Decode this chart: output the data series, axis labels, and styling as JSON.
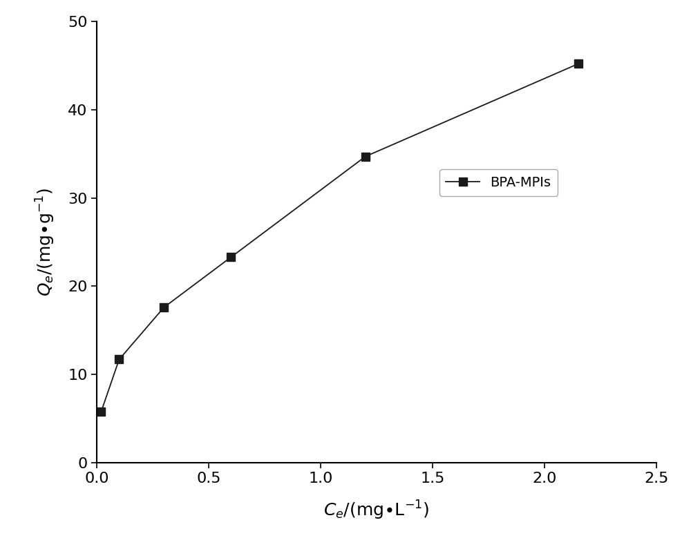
{
  "x": [
    0.02,
    0.1,
    0.3,
    0.6,
    1.2,
    2.15
  ],
  "y": [
    5.8,
    11.7,
    17.6,
    23.3,
    34.7,
    45.2
  ],
  "xlabel": "$C_e$/(mg$\\bullet$L$^{-1}$)",
  "ylabel": "$Q_e$/(mg$\\bullet$g$^{-1}$)",
  "xlim": [
    0,
    2.5
  ],
  "ylim": [
    0,
    50
  ],
  "xticks": [
    0.0,
    0.5,
    1.0,
    1.5,
    2.0,
    2.5
  ],
  "yticks": [
    0,
    10,
    20,
    30,
    40,
    50
  ],
  "legend_label": "BPA-MPIs",
  "line_color": "#1a1a1a",
  "marker": "s",
  "marker_size": 8,
  "marker_color": "#1a1a1a",
  "line_style": "-",
  "line_width": 1.3,
  "background_color": "#ffffff",
  "xlabel_fontsize": 18,
  "ylabel_fontsize": 18,
  "tick_fontsize": 16,
  "legend_fontsize": 14,
  "spine_linewidth": 1.5
}
